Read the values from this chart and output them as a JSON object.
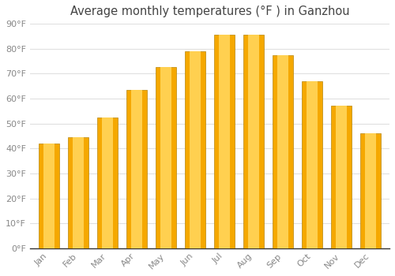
{
  "title": "Average monthly temperatures (°F ) in Ganzhou",
  "months": [
    "Jan",
    "Feb",
    "Mar",
    "Apr",
    "May",
    "Jun",
    "Jul",
    "Aug",
    "Sep",
    "Oct",
    "Nov",
    "Dec"
  ],
  "values": [
    42,
    44.5,
    52.5,
    63.5,
    72.5,
    79,
    85.5,
    85.5,
    77.5,
    67,
    57,
    46
  ],
  "bar_color_outer": "#F5A800",
  "bar_color_inner": "#FFD050",
  "bar_edge_color": "#B8860B",
  "ylim": [
    0,
    90
  ],
  "yticks": [
    0,
    10,
    20,
    30,
    40,
    50,
    60,
    70,
    80,
    90
  ],
  "ylabel_suffix": "°F",
  "background_color": "#FFFFFF",
  "plot_bg_color": "#FFFFFF",
  "grid_color": "#E0E0E0",
  "title_fontsize": 10.5,
  "tick_fontsize": 8,
  "tick_color": "#888888",
  "title_color": "#444444"
}
